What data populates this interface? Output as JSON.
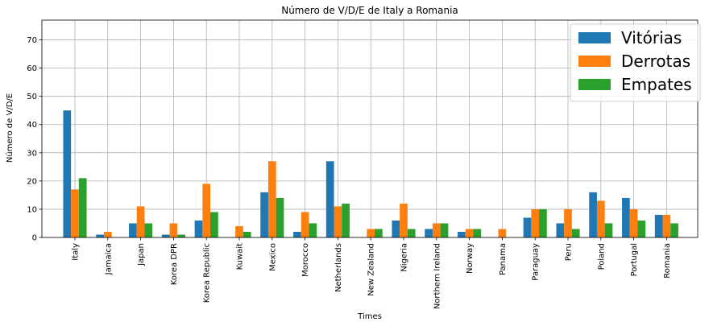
{
  "chart_data": {
    "type": "bar",
    "title": "Número de V/D/E de Italy a Romania",
    "xlabel": "Times",
    "ylabel": "Número de V/D/E",
    "ylim": [
      0,
      77
    ],
    "yticks": [
      0,
      10,
      20,
      30,
      40,
      50,
      60,
      70
    ],
    "grid": true,
    "legend_position": "top-right",
    "categories": [
      "Italy",
      "Jamaica",
      "Japan",
      "Korea DPR",
      "Korea Republic",
      "Kuwait",
      "Mexico",
      "Morocco",
      "Netherlands",
      "New Zealand",
      "Nigeria",
      "Northern Ireland",
      "Norway",
      "Panama",
      "Paraguay",
      "Peru",
      "Poland",
      "Portugal",
      "Romania"
    ],
    "series": [
      {
        "name": "Vitórias",
        "color": "#1f77b4",
        "values": [
          45,
          1,
          5,
          1,
          6,
          0,
          16,
          2,
          27,
          0,
          6,
          3,
          2,
          0,
          7,
          5,
          16,
          14,
          8
        ]
      },
      {
        "name": "Derrotas",
        "color": "#ff7f0e",
        "values": [
          17,
          2,
          11,
          5,
          19,
          4,
          27,
          9,
          11,
          3,
          12,
          5,
          3,
          3,
          10,
          10,
          13,
          10,
          8
        ]
      },
      {
        "name": "Empates",
        "color": "#2ca02c",
        "values": [
          21,
          0,
          5,
          1,
          9,
          2,
          14,
          5,
          12,
          3,
          3,
          5,
          3,
          0,
          10,
          3,
          5,
          6,
          5
        ]
      }
    ]
  }
}
